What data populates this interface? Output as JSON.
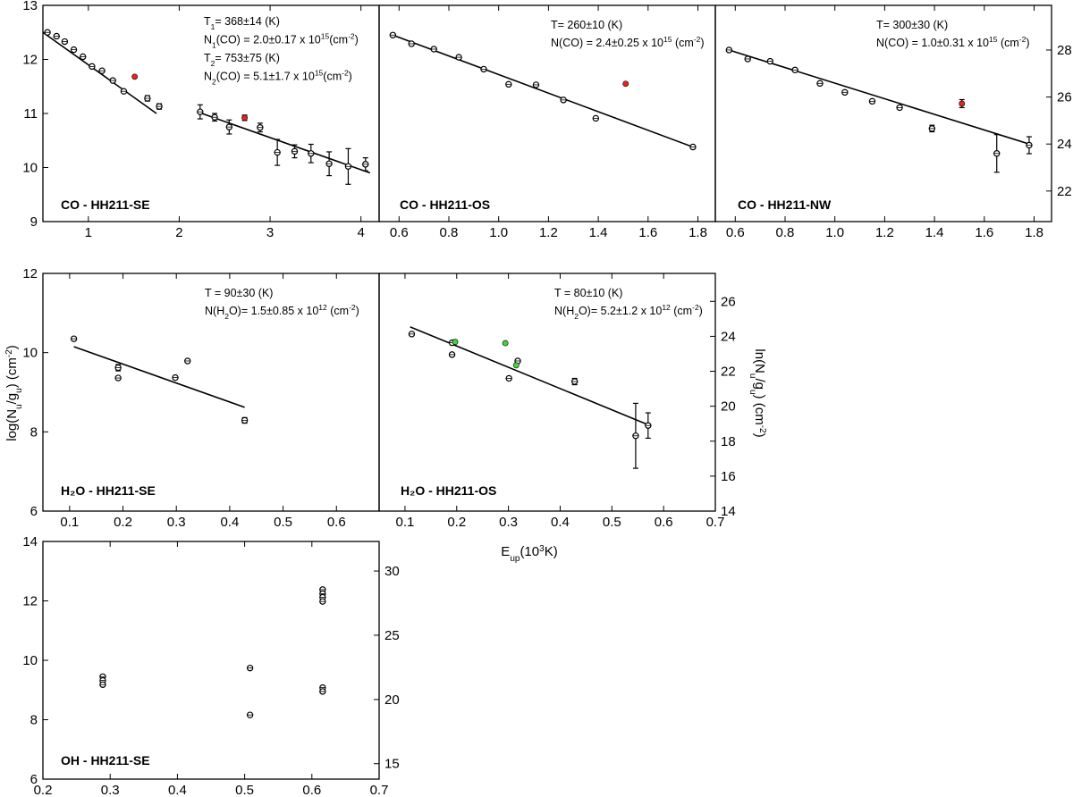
{
  "figure": {
    "left_ylabel": [
      "log(N",
      "u",
      "/g",
      "u",
      ") (cm",
      "-2",
      ")"
    ],
    "right_ylabel": [
      "ln(N",
      "u",
      "/g",
      "u",
      ") (cm",
      "-2",
      ")"
    ],
    "xlabel": [
      "E",
      "up",
      "(10",
      "3",
      "K)"
    ]
  },
  "chart_data": [
    {
      "id": "co-se",
      "type": "scatter",
      "title": "CO - HH211-SE",
      "xlim": [
        0.5,
        4.2
      ],
      "ylim": [
        9,
        13
      ],
      "xticks": [
        1,
        2,
        3,
        4
      ],
      "yticks_left": [
        9,
        10,
        11,
        12,
        13
      ],
      "yticks_right": [],
      "annotations": [
        [
          {
            "t": "T"
          },
          {
            "t": "1",
            "sub": true
          },
          {
            "t": "= 368±14 (K)"
          }
        ],
        [
          {
            "t": "N"
          },
          {
            "t": "1",
            "sub": true
          },
          {
            "t": "(CO) = 2.0±0.17 x 10"
          },
          {
            "t": "15",
            "sup": true
          },
          {
            "t": "(cm"
          },
          {
            "t": "-2",
            "sup": true
          },
          {
            "t": ")"
          }
        ],
        [
          {
            "t": "T"
          },
          {
            "t": "2",
            "sub": true
          },
          {
            "t": "= 753±75 (K)"
          }
        ],
        [
          {
            "t": "N"
          },
          {
            "t": "2",
            "sub": true
          },
          {
            "t": "(CO) = 5.1±1.7 x 10"
          },
          {
            "t": "15",
            "sup": true
          },
          {
            "t": "(cm"
          },
          {
            "t": "-2",
            "sup": true
          },
          {
            "t": ")"
          }
        ]
      ],
      "fits": [
        {
          "x": [
            0.5,
            1.75
          ],
          "y": [
            12.5,
            11.0
          ]
        },
        {
          "x": [
            2.25,
            4.1
          ],
          "y": [
            11.0,
            9.9
          ]
        }
      ],
      "points": [
        {
          "x": 0.55,
          "y": 12.5,
          "err": 0.03,
          "color": "open"
        },
        {
          "x": 0.65,
          "y": 12.43,
          "err": 0.03,
          "color": "open"
        },
        {
          "x": 0.74,
          "y": 12.33,
          "err": 0.03,
          "color": "open"
        },
        {
          "x": 0.84,
          "y": 12.18,
          "err": 0.03,
          "color": "open"
        },
        {
          "x": 0.94,
          "y": 12.05,
          "err": 0.03,
          "color": "open"
        },
        {
          "x": 1.04,
          "y": 11.87,
          "err": 0.03,
          "color": "open"
        },
        {
          "x": 1.15,
          "y": 11.79,
          "err": 0.03,
          "color": "open"
        },
        {
          "x": 1.27,
          "y": 11.61,
          "err": 0.03,
          "color": "open"
        },
        {
          "x": 1.39,
          "y": 11.41,
          "err": 0.03,
          "color": "open"
        },
        {
          "x": 1.51,
          "y": 11.68,
          "err": 0.03,
          "color": "#e8231f"
        },
        {
          "x": 1.65,
          "y": 11.28,
          "err": 0.05,
          "color": "open"
        },
        {
          "x": 1.78,
          "y": 11.13,
          "err": 0.05,
          "color": "open"
        },
        {
          "x": 2.23,
          "y": 11.03,
          "err": 0.13,
          "color": "open"
        },
        {
          "x": 2.39,
          "y": 10.93,
          "err": 0.07,
          "color": "open"
        },
        {
          "x": 2.55,
          "y": 10.75,
          "err": 0.13,
          "color": "open"
        },
        {
          "x": 2.72,
          "y": 10.92,
          "err": 0.05,
          "color": "#e8231f"
        },
        {
          "x": 2.89,
          "y": 10.74,
          "err": 0.08,
          "color": "open"
        },
        {
          "x": 3.08,
          "y": 10.28,
          "err": 0.24,
          "color": "open"
        },
        {
          "x": 3.27,
          "y": 10.3,
          "err": 0.12,
          "color": "open"
        },
        {
          "x": 3.45,
          "y": 10.26,
          "err": 0.17,
          "color": "open"
        },
        {
          "x": 3.65,
          "y": 10.07,
          "err": 0.22,
          "color": "open"
        },
        {
          "x": 3.86,
          "y": 10.02,
          "err": 0.33,
          "color": "open"
        },
        {
          "x": 4.05,
          "y": 10.06,
          "err": 0.12,
          "color": "open"
        }
      ]
    },
    {
      "id": "co-os",
      "type": "scatter",
      "title": "CO - HH211-OS",
      "xlim": [
        0.52,
        1.87
      ],
      "ylim": [
        9,
        13
      ],
      "xticks": [
        0.6,
        0.8,
        1.0,
        1.2,
        1.4,
        1.6,
        1.8
      ],
      "yticks_left": [],
      "yticks_right": [],
      "annotations": [
        [
          {
            "t": "T= 260±10 (K)"
          }
        ],
        [
          {
            "t": "N(CO) = 2.4±0.25 x 10"
          },
          {
            "t": "15",
            "sup": true
          },
          {
            "t": " (cm"
          },
          {
            "t": "-2",
            "sup": true
          },
          {
            "t": ")"
          }
        ]
      ],
      "fits": [
        {
          "x": [
            0.575,
            1.78
          ],
          "y": [
            12.45,
            10.38
          ]
        }
      ],
      "points": [
        {
          "x": 0.575,
          "y": 12.45,
          "err": 0.02,
          "color": "open"
        },
        {
          "x": 0.65,
          "y": 12.29,
          "err": 0.02,
          "color": "open"
        },
        {
          "x": 0.74,
          "y": 12.19,
          "err": 0.02,
          "color": "open"
        },
        {
          "x": 0.84,
          "y": 12.04,
          "err": 0.02,
          "color": "open"
        },
        {
          "x": 0.94,
          "y": 11.82,
          "err": 0.02,
          "color": "open"
        },
        {
          "x": 1.04,
          "y": 11.54,
          "err": 0.02,
          "color": "open"
        },
        {
          "x": 1.15,
          "y": 11.53,
          "err": 0.02,
          "color": "open"
        },
        {
          "x": 1.26,
          "y": 11.25,
          "err": 0.02,
          "color": "open"
        },
        {
          "x": 1.39,
          "y": 10.91,
          "err": 0.02,
          "color": "open"
        },
        {
          "x": 1.51,
          "y": 11.55,
          "err": 0.02,
          "color": "#e8231f"
        },
        {
          "x": 1.78,
          "y": 10.38,
          "err": 0.02,
          "color": "open"
        }
      ]
    },
    {
      "id": "co-nw",
      "type": "scatter",
      "title": "CO - HH211-NW",
      "xlim": [
        0.52,
        1.87
      ],
      "ylim": [
        20.7,
        29.9
      ],
      "xticks": [
        0.6,
        0.8,
        1.0,
        1.2,
        1.4,
        1.6,
        1.8
      ],
      "yticks_left": [],
      "yticks_right": [
        22,
        24,
        26,
        28
      ],
      "annotations": [
        [
          {
            "t": "T= 300±30 (K)"
          }
        ],
        [
          {
            "t": "N(CO) = 1.0±0.31 x 10"
          },
          {
            "t": "15",
            "sup": true
          },
          {
            "t": " (cm"
          },
          {
            "t": "-2",
            "sup": true
          },
          {
            "t": ")"
          }
        ]
      ],
      "fits": [
        {
          "x": [
            0.575,
            1.78
          ],
          "y": [
            28.0,
            24.0
          ]
        }
      ],
      "points": [
        {
          "x": 0.575,
          "y": 28.0,
          "err": 0.05,
          "color": "open"
        },
        {
          "x": 0.65,
          "y": 27.62,
          "err": 0.05,
          "color": "open"
        },
        {
          "x": 0.74,
          "y": 27.52,
          "err": 0.07,
          "color": "open"
        },
        {
          "x": 0.84,
          "y": 27.15,
          "err": 0.07,
          "color": "open"
        },
        {
          "x": 0.94,
          "y": 26.58,
          "err": 0.07,
          "color": "open"
        },
        {
          "x": 1.04,
          "y": 26.2,
          "err": 0.07,
          "color": "open"
        },
        {
          "x": 1.15,
          "y": 25.82,
          "err": 0.07,
          "color": "open"
        },
        {
          "x": 1.26,
          "y": 25.55,
          "err": 0.07,
          "color": "open"
        },
        {
          "x": 1.39,
          "y": 24.66,
          "err": 0.14,
          "color": "open"
        },
        {
          "x": 1.51,
          "y": 25.72,
          "err": 0.17,
          "color": "#e8231f"
        },
        {
          "x": 1.65,
          "y": 23.6,
          "err": 0.8,
          "color": "open"
        },
        {
          "x": 1.78,
          "y": 23.95,
          "err": 0.36,
          "color": "open"
        }
      ]
    },
    {
      "id": "h2o-se",
      "type": "scatter",
      "title": "H₂O - HH211-SE",
      "xlim": [
        0.05,
        0.68
      ],
      "ylim": [
        6,
        12
      ],
      "xticks": [
        0.1,
        0.2,
        0.3,
        0.4,
        0.5,
        0.6
      ],
      "yticks_left": [
        6,
        8,
        10,
        12
      ],
      "yticks_right": [],
      "annotations": [
        [
          {
            "t": "T = 90±30 (K)"
          }
        ],
        [
          {
            "t": "N(H"
          },
          {
            "t": "2",
            "sub": true
          },
          {
            "t": "O)= 1.5±0.85 x 10"
          },
          {
            "t": "12",
            "sup": true
          },
          {
            "t": " (cm"
          },
          {
            "t": "-2",
            "sup": true
          },
          {
            "t": ")"
          }
        ]
      ],
      "fits": [
        {
          "x": [
            0.108,
            0.428
          ],
          "y": [
            10.15,
            8.62
          ]
        }
      ],
      "points": [
        {
          "x": 0.108,
          "y": 10.35,
          "err": 0.05,
          "color": "open"
        },
        {
          "x": 0.191,
          "y": 9.62,
          "err": 0.08,
          "color": "open"
        },
        {
          "x": 0.191,
          "y": 9.36,
          "err": 0.05,
          "color": "open"
        },
        {
          "x": 0.298,
          "y": 9.37,
          "err": 0.05,
          "color": "open"
        },
        {
          "x": 0.321,
          "y": 9.79,
          "err": 0.05,
          "color": "open"
        },
        {
          "x": 0.428,
          "y": 8.29,
          "err": 0.07,
          "color": "open"
        }
      ]
    },
    {
      "id": "h2o-os",
      "type": "scatter",
      "title": "H₂O - HH211-OS",
      "xlim": [
        0.05,
        0.7
      ],
      "ylim": [
        6,
        12
      ],
      "xticks": [
        0.1,
        0.2,
        0.3,
        0.4,
        0.5,
        0.6,
        0.7
      ],
      "yticks_left": [],
      "yticks_right": [],
      "right_axis": {
        "ylim": [
          14,
          27.6
        ],
        "yticks": [
          14,
          16,
          18,
          20,
          22,
          24,
          26
        ]
      },
      "annotations": [
        [
          {
            "t": "T = 80±10 (K)"
          }
        ],
        [
          {
            "t": "N(H"
          },
          {
            "t": "2",
            "sub": true
          },
          {
            "t": "O)= 5.2±1.2 x 10"
          },
          {
            "t": "12",
            "sup": true
          },
          {
            "t": " (cm"
          },
          {
            "t": "-2",
            "sup": true
          },
          {
            "t": ")"
          }
        ]
      ],
      "fits": [
        {
          "x": [
            0.11,
            0.57
          ],
          "y": [
            10.65,
            8.18
          ]
        }
      ],
      "points": [
        {
          "x": 0.113,
          "y": 10.47,
          "err": 0.04,
          "color": "open"
        },
        {
          "x": 0.191,
          "y": 10.25,
          "err": 0.04,
          "color": "open"
        },
        {
          "x": 0.191,
          "y": 9.95,
          "err": 0.04,
          "color": "open"
        },
        {
          "x": 0.197,
          "y": 10.27,
          "err": 0.04,
          "color": "#3dd63d"
        },
        {
          "x": 0.294,
          "y": 10.24,
          "err": 0.04,
          "color": "#3dd63d"
        },
        {
          "x": 0.301,
          "y": 9.35,
          "err": 0.04,
          "color": "open"
        },
        {
          "x": 0.318,
          "y": 9.79,
          "err": 0.05,
          "color": "open"
        },
        {
          "x": 0.315,
          "y": 9.68,
          "err": 0.04,
          "color": "#3dd63d"
        },
        {
          "x": 0.428,
          "y": 9.27,
          "err": 0.08,
          "color": "open"
        },
        {
          "x": 0.546,
          "y": 7.9,
          "err": 0.82,
          "color": "open"
        },
        {
          "x": 0.57,
          "y": 8.16,
          "err": 0.32,
          "color": "open"
        }
      ]
    },
    {
      "id": "oh-se",
      "type": "scatter",
      "title": "OH - HH211-SE",
      "xlim": [
        0.2,
        0.7
      ],
      "ylim": [
        6,
        14
      ],
      "xticks": [
        0.2,
        0.3,
        0.4,
        0.5,
        0.6,
        0.7
      ],
      "yticks_left": [
        6,
        8,
        10,
        12,
        14
      ],
      "yticks_right": [
        15,
        20,
        25,
        30
      ],
      "right_axis": {
        "ylim": [
          13.8,
          32.3
        ],
        "yticks": [
          15,
          20,
          25,
          30
        ]
      },
      "annotations": [],
      "fits": [],
      "points": [
        {
          "x": 0.289,
          "y": 9.45,
          "err": 0.05,
          "color": "open"
        },
        {
          "x": 0.289,
          "y": 9.32,
          "err": 0.05,
          "color": "open"
        },
        {
          "x": 0.289,
          "y": 9.18,
          "err": 0.05,
          "color": "open"
        },
        {
          "x": 0.508,
          "y": 9.74,
          "err": 0.05,
          "color": "open"
        },
        {
          "x": 0.508,
          "y": 8.16,
          "err": 0.05,
          "color": "open"
        },
        {
          "x": 0.616,
          "y": 12.38,
          "err": 0.05,
          "color": "open"
        },
        {
          "x": 0.616,
          "y": 12.24,
          "err": 0.05,
          "color": "open"
        },
        {
          "x": 0.616,
          "y": 12.12,
          "err": 0.05,
          "color": "open"
        },
        {
          "x": 0.616,
          "y": 11.98,
          "err": 0.05,
          "color": "open"
        },
        {
          "x": 0.616,
          "y": 9.08,
          "err": 0.05,
          "color": "open"
        },
        {
          "x": 0.616,
          "y": 8.95,
          "err": 0.05,
          "color": "open"
        }
      ]
    }
  ]
}
